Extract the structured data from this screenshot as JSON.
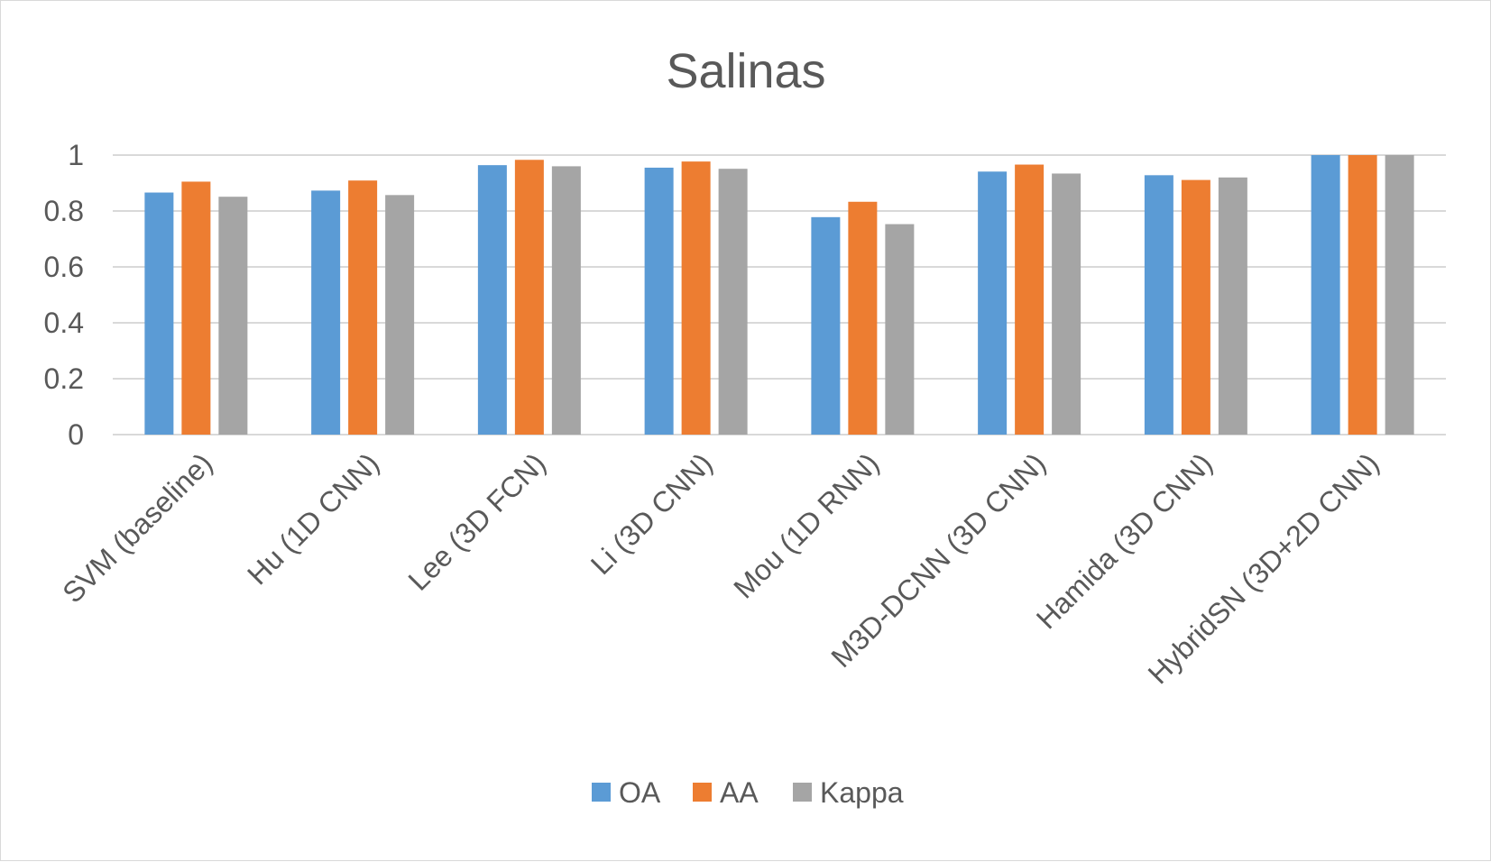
{
  "chart_data": {
    "type": "bar",
    "title": "Salinas",
    "xlabel": "",
    "ylabel": "",
    "ylim": [
      0,
      1
    ],
    "y_ticks": [
      "0",
      "0.2",
      "0.4",
      "0.6",
      "0.8",
      "1"
    ],
    "y_tick_values": [
      0,
      0.2,
      0.4,
      0.6,
      0.8,
      1
    ],
    "grid": true,
    "legend_position": "bottom",
    "categories": [
      "SVM (baseline)",
      "Hu (1D CNN)",
      "Lee (3D FCN)",
      "Li (3D CNN)",
      "Mou (1D RNN)",
      "M3D-DCNN (3D CNN)",
      "Hamida (3D CNN)",
      "HybridSN (3D+2D CNN)"
    ],
    "series": [
      {
        "name": "OA",
        "color": "#5b9bd5",
        "values": [
          0.866,
          0.873,
          0.964,
          0.955,
          0.778,
          0.941,
          0.928,
          1.0
        ]
      },
      {
        "name": "AA",
        "color": "#ed7d31",
        "values": [
          0.905,
          0.909,
          0.983,
          0.977,
          0.833,
          0.966,
          0.911,
          1.0
        ]
      },
      {
        "name": "Kappa",
        "color": "#a5a5a5",
        "values": [
          0.851,
          0.857,
          0.96,
          0.951,
          0.753,
          0.934,
          0.92,
          1.0
        ]
      }
    ]
  }
}
